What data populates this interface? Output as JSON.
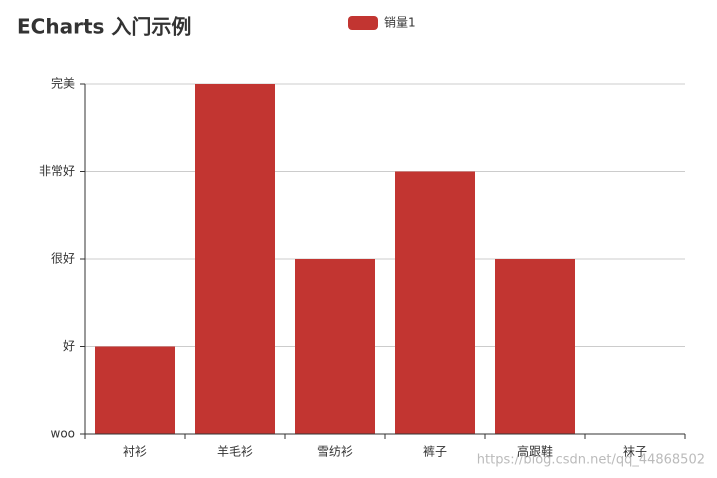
{
  "chart_data": {
    "type": "bar",
    "title": "ECharts 入门示例",
    "categories": [
      "衬衫",
      "羊毛衫",
      "雪纺衫",
      "裤子",
      "高跟鞋",
      "袜子"
    ],
    "series": [
      {
        "name": "销量1",
        "color": "#c23531",
        "values": [
          1,
          4,
          2,
          3,
          2,
          0
        ]
      }
    ],
    "ylim": [
      0,
      4
    ],
    "yticks": [
      {
        "value": 0,
        "label": "woo"
      },
      {
        "value": 1,
        "label": "好"
      },
      {
        "value": 2,
        "label": "很好"
      },
      {
        "value": 3,
        "label": "非常好"
      },
      {
        "value": 4,
        "label": "完美"
      }
    ],
    "grid": true,
    "legend_position": "top",
    "watermark": "https://blog.csdn.net/qq_44868502"
  }
}
